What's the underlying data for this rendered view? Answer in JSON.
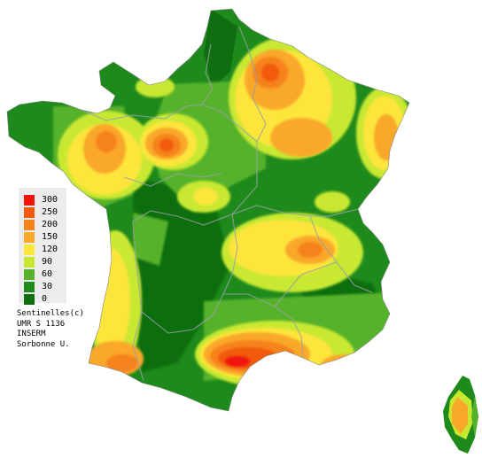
{
  "legend": {
    "levels": [
      {
        "label": "300",
        "color": "#f0140a"
      },
      {
        "label": "250",
        "color": "#f25a0e"
      },
      {
        "label": "200",
        "color": "#f6821a"
      },
      {
        "label": "150",
        "color": "#f9a82a"
      },
      {
        "label": "120",
        "color": "#fde53a"
      },
      {
        "label": "90",
        "color": "#c8e830"
      },
      {
        "label": "60",
        "color": "#56b22a"
      },
      {
        "label": "30",
        "color": "#1f8a1c"
      },
      {
        "label": "0",
        "color": "#0f6e10"
      }
    ]
  },
  "credits": [
    "Sentinelles(c)",
    "UMR S 1136",
    "INSERM",
    "Sorbonne U."
  ]
}
